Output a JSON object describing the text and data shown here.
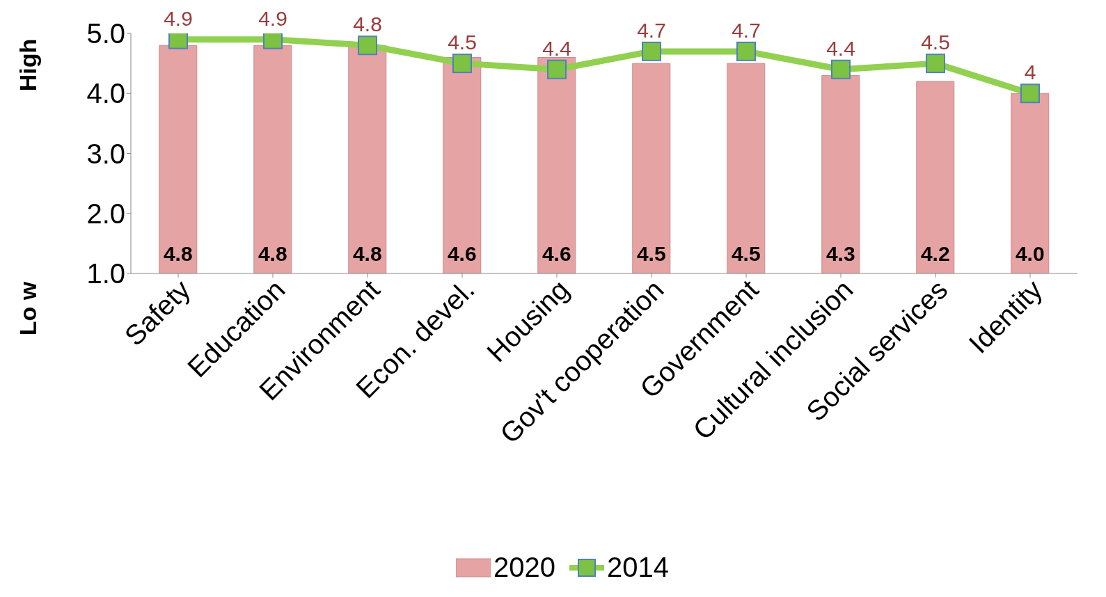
{
  "chart_data": {
    "type": "bar",
    "categories": [
      "Safety",
      "Education",
      "Environment",
      "Econ. devel.",
      "Housing",
      "Gov't cooperation",
      "Government",
      "Cultural inclusion",
      "Social services",
      "Identity"
    ],
    "series": [
      {
        "name": "2020",
        "color": "#e6a3a3",
        "values": [
          4.8,
          4.8,
          4.8,
          4.6,
          4.6,
          4.5,
          4.5,
          4.3,
          4.2,
          4.0
        ],
        "value_labels": [
          "4.8",
          "4.8",
          "4.8",
          "4.6",
          "4.6",
          "4.5",
          "4.5",
          "4.3",
          "4.2",
          "4.0"
        ]
      },
      {
        "name": "2014",
        "type": "line",
        "color": "#92d050",
        "values": [
          4.9,
          4.9,
          4.8,
          4.5,
          4.4,
          4.7,
          4.7,
          4.4,
          4.5,
          4
        ],
        "value_labels": [
          "4.9",
          "4.9",
          "4.8",
          "4.5",
          "4.4",
          "4.7",
          "4.7",
          "4.4",
          "4.5",
          "4"
        ]
      }
    ],
    "ylim": [
      1,
      5
    ],
    "yticks": [
      {
        "value": 1,
        "label": "1.0"
      },
      {
        "value": 2,
        "label": "2.0"
      },
      {
        "value": 3,
        "label": "3.0"
      },
      {
        "value": 4,
        "label": "4.0"
      },
      {
        "value": 5,
        "label": "5.0"
      }
    ],
    "annotations": [
      "High",
      "Lo w"
    ],
    "grid": false,
    "legend": "bottom",
    "marker": "square",
    "line_style": "solid"
  }
}
